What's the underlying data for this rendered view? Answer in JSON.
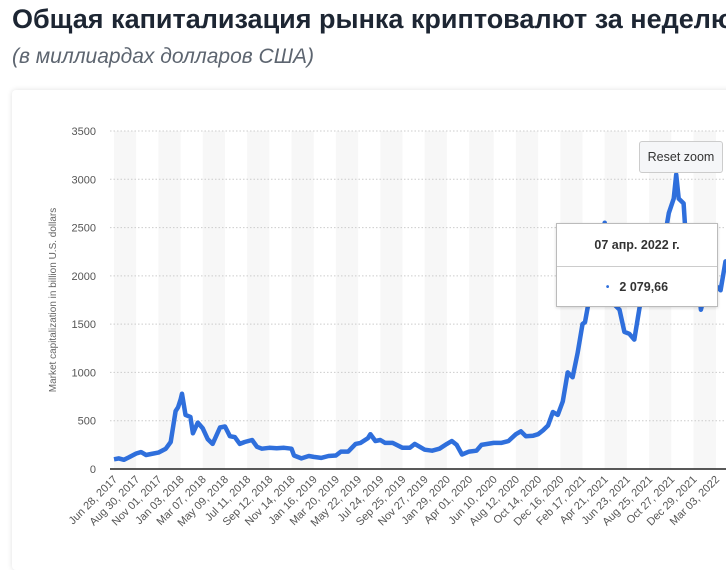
{
  "title": "Общая капитализация рынка криптовалют за неделю с",
  "subtitle": "(в миллиардах долларов США)",
  "reset_zoom_label": "Reset zoom",
  "tooltip": {
    "date": "07 апр. 2022 г.",
    "value": "2 079,66",
    "bullet": "•"
  },
  "colors": {
    "line": "#2f6fdc",
    "band": "#f7f7f7",
    "grid": "#cccccc"
  },
  "chart_data": {
    "type": "line",
    "title": "",
    "xlabel": "",
    "ylabel": "Market capitalization in billion U.S. dollars",
    "ylim": [
      0,
      3500
    ],
    "yticks": [
      0,
      500,
      1000,
      1500,
      2000,
      2500,
      3000,
      3500
    ],
    "xticks": [
      "Jun 28, 2017",
      "Aug 30, 2017",
      "Nov 01, 2017",
      "Jan 03, 2018",
      "Mar 07, 2018",
      "May 09, 2018",
      "Jul 11, 2018",
      "Sep 12, 2018",
      "Nov 14, 2018",
      "Jan 16, 2019",
      "Mar 20, 2019",
      "May 22, 2019",
      "Jul 24, 2019",
      "Sep 25, 2019",
      "Nov 27, 2019",
      "Jan 29, 2020",
      "Apr 01, 2020",
      "Jun 10, 2020",
      "Aug 12, 2020",
      "Oct 14, 2020",
      "Dec 16, 2020",
      "Feb 17, 2021",
      "Apr 21, 2021",
      "Jun 23, 2021",
      "Aug 25, 2021",
      "Oct 27, 2021",
      "Dec 29, 2021",
      "Mar 03, 2022"
    ],
    "grid": "horizontal dotted",
    "legend": "none",
    "points": [
      [
        "2017-06-28",
        100
      ],
      [
        "2017-07-12",
        110
      ],
      [
        "2017-07-26",
        95
      ],
      [
        "2017-08-09",
        120
      ],
      [
        "2017-08-30",
        160
      ],
      [
        "2017-09-13",
        175
      ],
      [
        "2017-09-27",
        145
      ],
      [
        "2017-10-11",
        155
      ],
      [
        "2017-11-01",
        170
      ],
      [
        "2017-11-22",
        210
      ],
      [
        "2017-12-06",
        280
      ],
      [
        "2017-12-20",
        600
      ],
      [
        "2017-12-27",
        640
      ],
      [
        "2018-01-03",
        720
      ],
      [
        "2018-01-07",
        780
      ],
      [
        "2018-01-17",
        560
      ],
      [
        "2018-01-31",
        540
      ],
      [
        "2018-02-07",
        370
      ],
      [
        "2018-02-21",
        480
      ],
      [
        "2018-03-07",
        420
      ],
      [
        "2018-03-21",
        310
      ],
      [
        "2018-04-04",
        260
      ],
      [
        "2018-04-25",
        430
      ],
      [
        "2018-05-09",
        440
      ],
      [
        "2018-05-23",
        340
      ],
      [
        "2018-06-06",
        330
      ],
      [
        "2018-06-20",
        260
      ],
      [
        "2018-07-04",
        280
      ],
      [
        "2018-07-25",
        300
      ],
      [
        "2018-08-08",
        230
      ],
      [
        "2018-08-22",
        210
      ],
      [
        "2018-09-12",
        220
      ],
      [
        "2018-10-03",
        215
      ],
      [
        "2018-10-24",
        220
      ],
      [
        "2018-11-14",
        210
      ],
      [
        "2018-11-21",
        140
      ],
      [
        "2018-12-12",
        110
      ],
      [
        "2019-01-02",
        135
      ],
      [
        "2019-01-16",
        125
      ],
      [
        "2019-02-06",
        115
      ],
      [
        "2019-02-27",
        135
      ],
      [
        "2019-03-20",
        140
      ],
      [
        "2019-04-03",
        180
      ],
      [
        "2019-04-24",
        180
      ],
      [
        "2019-05-15",
        260
      ],
      [
        "2019-05-29",
        270
      ],
      [
        "2019-06-19",
        320
      ],
      [
        "2019-06-26",
        360
      ],
      [
        "2019-07-10",
        290
      ],
      [
        "2019-07-24",
        300
      ],
      [
        "2019-08-07",
        270
      ],
      [
        "2019-08-28",
        270
      ],
      [
        "2019-09-25",
        220
      ],
      [
        "2019-10-16",
        220
      ],
      [
        "2019-10-30",
        260
      ],
      [
        "2019-11-27",
        200
      ],
      [
        "2019-12-18",
        190
      ],
      [
        "2020-01-08",
        210
      ],
      [
        "2020-01-29",
        260
      ],
      [
        "2020-02-12",
        290
      ],
      [
        "2020-02-26",
        250
      ],
      [
        "2020-03-12",
        150
      ],
      [
        "2020-04-01",
        180
      ],
      [
        "2020-04-22",
        190
      ],
      [
        "2020-05-06",
        250
      ],
      [
        "2020-06-10",
        270
      ],
      [
        "2020-07-01",
        270
      ],
      [
        "2020-07-22",
        290
      ],
      [
        "2020-08-12",
        360
      ],
      [
        "2020-08-26",
        390
      ],
      [
        "2020-09-09",
        340
      ],
      [
        "2020-09-30",
        345
      ],
      [
        "2020-10-14",
        360
      ],
      [
        "2020-10-28",
        400
      ],
      [
        "2020-11-11",
        450
      ],
      [
        "2020-11-25",
        590
      ],
      [
        "2020-12-09",
        560
      ],
      [
        "2020-12-23",
        700
      ],
      [
        "2021-01-06",
        1000
      ],
      [
        "2021-01-20",
        950
      ],
      [
        "2021-02-03",
        1200
      ],
      [
        "2021-02-17",
        1500
      ],
      [
        "2021-02-24",
        1520
      ],
      [
        "2021-03-10",
        1800
      ],
      [
        "2021-03-24",
        1850
      ],
      [
        "2021-04-14",
        2400
      ],
      [
        "2021-04-21",
        2550
      ],
      [
        "2021-05-05",
        2100
      ],
      [
        "2021-05-19",
        1700
      ],
      [
        "2021-06-02",
        1650
      ],
      [
        "2021-06-16",
        1420
      ],
      [
        "2021-06-30",
        1400
      ],
      [
        "2021-07-14",
        1340
      ],
      [
        "2021-07-28",
        1650
      ],
      [
        "2021-08-11",
        1950
      ],
      [
        "2021-08-25",
        2100
      ],
      [
        "2021-09-08",
        2050
      ],
      [
        "2021-09-22",
        2000
      ],
      [
        "2021-10-06",
        2350
      ],
      [
        "2021-10-20",
        2650
      ],
      [
        "2021-11-03",
        2800
      ],
      [
        "2021-11-10",
        3050
      ],
      [
        "2021-11-17",
        2800
      ],
      [
        "2021-12-01",
        2750
      ],
      [
        "2021-12-08",
        2350
      ],
      [
        "2021-12-22",
        2250
      ],
      [
        "2022-01-05",
        2150
      ],
      [
        "2022-01-19",
        1650
      ],
      [
        "2022-02-02",
        1850
      ],
      [
        "2022-02-16",
        1950
      ],
      [
        "2022-03-02",
        1900
      ],
      [
        "2022-03-16",
        1850
      ],
      [
        "2022-03-30",
        2150
      ],
      [
        "2022-04-07",
        2080
      ]
    ]
  }
}
